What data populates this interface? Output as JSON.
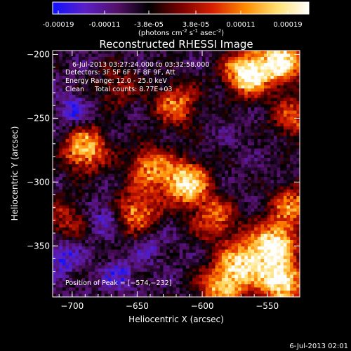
{
  "colorbar": {
    "ticks": [
      "-0.00019",
      "-0.00011",
      "-3.8e-05",
      "3.8e-05",
      "0.00011",
      "0.00019"
    ],
    "unit_main": "(photons cm",
    "unit_exp1": "-2",
    "unit_mid": " s",
    "unit_exp2": "-1",
    "unit_end": " asec",
    "unit_exp3": "-2",
    "unit_close": ")",
    "colors": [
      "#1010ff",
      "#5a20c8",
      "#55106a",
      "#000000",
      "#7a0000",
      "#d62000",
      "#ff8a00",
      "#ffe070",
      "#ffffff"
    ]
  },
  "chart_data": {
    "type": "heatmap",
    "title": "Reconstructed RHESSI Image",
    "xlabel": "Heliocentric X (arcsec)",
    "ylabel": "Heliocentric Y (arcsec)",
    "xlim": [
      -715,
      -525
    ],
    "ylim": [
      -390,
      -197
    ],
    "xticks": [
      -700,
      -650,
      -600,
      -550
    ],
    "yticks": [
      -200,
      -250,
      -300,
      -350
    ],
    "xtick_labels": [
      "−700",
      "−650",
      "−600",
      "−550"
    ],
    "ytick_labels": [
      "−200",
      "−250",
      "−300",
      "−350"
    ],
    "annotations": [
      "6-Jul-2013 03:27:24.000 to 03:32:58.000",
      "Detectors: 3F 5F 6F 7F 8F 9F, Att",
      "Energy Range: 12.0 - 25.0 keV",
      "Clean     Total counts: 8.77E+03"
    ],
    "peak_label": "Position of Peak = [−574,−232]",
    "peak": [
      -574,
      -232
    ],
    "sources": [
      {
        "x": -565,
        "y": -215,
        "strength": 1.0
      },
      {
        "x": -538,
        "y": -205,
        "strength": 0.9
      },
      {
        "x": -620,
        "y": -240,
        "strength": 0.55
      },
      {
        "x": -690,
        "y": -275,
        "strength": 0.75
      },
      {
        "x": -640,
        "y": -290,
        "strength": 0.6
      },
      {
        "x": -612,
        "y": -302,
        "strength": 0.9
      },
      {
        "x": -650,
        "y": -325,
        "strength": 0.6
      },
      {
        "x": -590,
        "y": -330,
        "strength": 0.5
      },
      {
        "x": -545,
        "y": -350,
        "strength": 0.9
      },
      {
        "x": -540,
        "y": -380,
        "strength": 0.95
      },
      {
        "x": -570,
        "y": -365,
        "strength": 0.75
      },
      {
        "x": -585,
        "y": -385,
        "strength": 0.7
      },
      {
        "x": -530,
        "y": -320,
        "strength": 0.55
      },
      {
        "x": -530,
        "y": -250,
        "strength": 0.45
      },
      {
        "x": -705,
        "y": -330,
        "strength": 0.35
      },
      {
        "x": -665,
        "y": -225,
        "strength": 0.3
      }
    ],
    "negative_regions": [
      {
        "x": -700,
        "y": -245,
        "strength": 0.6
      },
      {
        "x": -708,
        "y": -360,
        "strength": 0.7
      },
      {
        "x": -675,
        "y": -330,
        "strength": 0.6
      },
      {
        "x": -665,
        "y": -375,
        "strength": 0.55
      },
      {
        "x": -640,
        "y": -350,
        "strength": 0.4
      }
    ]
  },
  "footer": {
    "timestamp": "6-Jul-2013 02:01"
  }
}
